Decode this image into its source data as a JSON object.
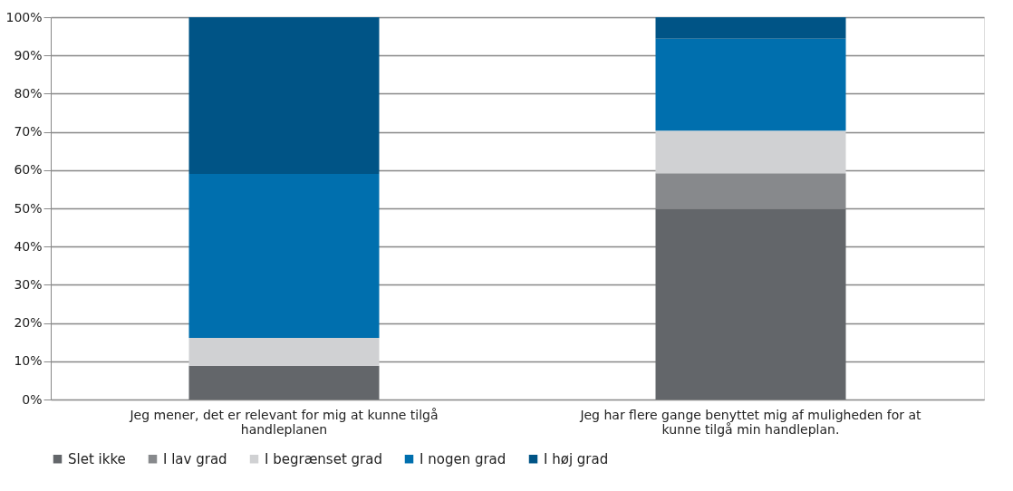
{
  "chart_data": {
    "type": "bar",
    "stacked": true,
    "categories": [
      "Jeg mener, det er relevant for mig at kunne tilgå handleplanen",
      "Jeg har flere gange benyttet mig af muligheden for at kunne tilgå min handleplan."
    ],
    "series": [
      {
        "name": "Slet ikke",
        "color": "#63666a",
        "values": [
          8.8,
          49.8
        ]
      },
      {
        "name": "I lav grad",
        "color": "#87898c",
        "values": [
          0,
          9.4
        ]
      },
      {
        "name": "I begrænset grad",
        "color": "#d0d1d3",
        "values": [
          7.3,
          11.1
        ]
      },
      {
        "name": "I nogen grad",
        "color": "#006fae",
        "values": [
          42.9,
          24.1
        ]
      },
      {
        "name": "I høj grad",
        "color": "#005486",
        "values": [
          41.0,
          5.6
        ]
      }
    ],
    "ylim": [
      0,
      100
    ],
    "yticks": [
      {
        "value": 0,
        "label": "0%"
      },
      {
        "value": 10,
        "label": "10%"
      },
      {
        "value": 20,
        "label": "20%"
      },
      {
        "value": 30,
        "label": "30%"
      },
      {
        "value": 40,
        "label": "40%"
      },
      {
        "value": 50,
        "label": "50%"
      },
      {
        "value": 60,
        "label": "60%"
      },
      {
        "value": 70,
        "label": "70%"
      },
      {
        "value": 80,
        "label": "80%"
      },
      {
        "value": 90,
        "label": "90%"
      },
      {
        "value": 100,
        "label": "100%"
      }
    ],
    "grid": "y",
    "legend": "bottom"
  }
}
